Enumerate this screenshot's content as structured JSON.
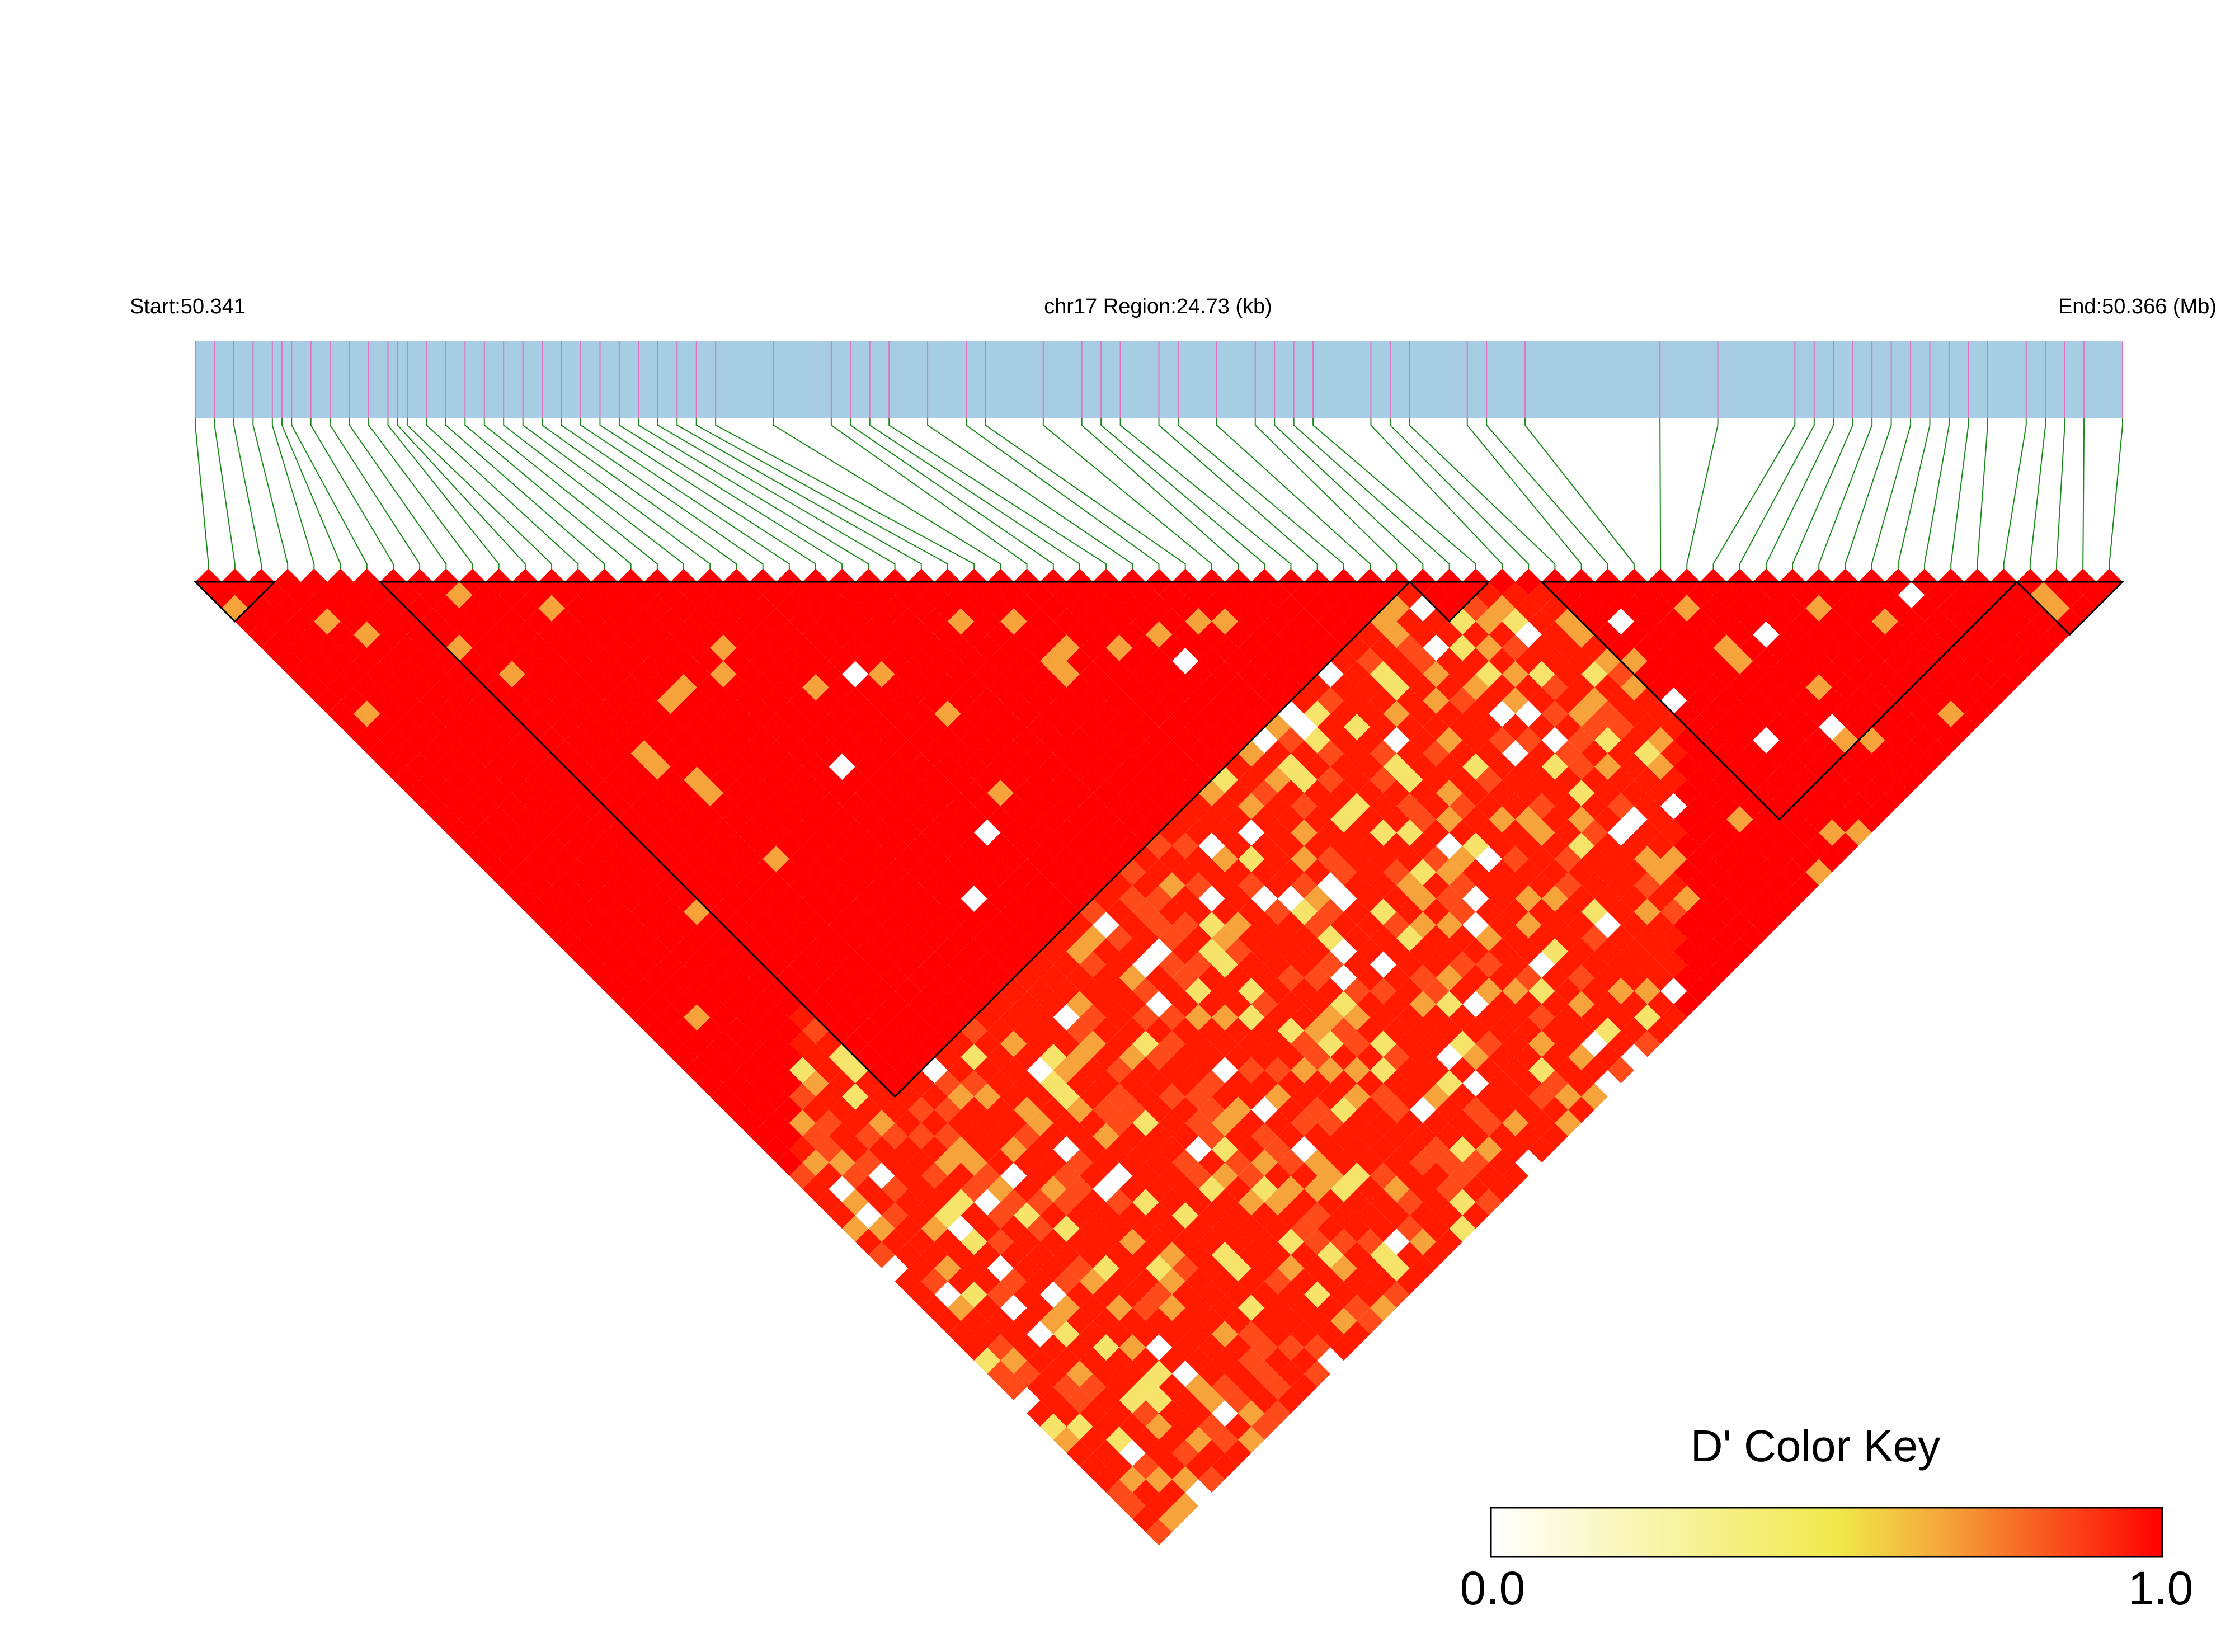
{
  "chart_data": {
    "type": "heatmap",
    "subtype": "linkage-disequilibrium-triangle",
    "region": {
      "start_label": "Start:50.341",
      "center_label": "chr17 Region:24.73 (kb)",
      "end_label": "End:50.366 (Mb)",
      "chromosome": "chr17",
      "start_mb": 50.341,
      "end_mb": 50.366,
      "length_kb": 24.73
    },
    "snp_count": 73,
    "snp_positions_fraction": [
      0.0,
      0.01,
      0.02,
      0.03,
      0.04,
      0.045,
      0.05,
      0.06,
      0.07,
      0.08,
      0.09,
      0.1,
      0.105,
      0.11,
      0.12,
      0.13,
      0.14,
      0.15,
      0.16,
      0.17,
      0.18,
      0.19,
      0.2,
      0.21,
      0.22,
      0.23,
      0.24,
      0.25,
      0.26,
      0.27,
      0.3,
      0.33,
      0.34,
      0.35,
      0.36,
      0.38,
      0.4,
      0.41,
      0.44,
      0.46,
      0.47,
      0.48,
      0.5,
      0.51,
      0.53,
      0.55,
      0.56,
      0.57,
      0.58,
      0.61,
      0.62,
      0.63,
      0.66,
      0.67,
      0.69,
      0.76,
      0.79,
      0.83,
      0.84,
      0.85,
      0.86,
      0.87,
      0.88,
      0.89,
      0.9,
      0.91,
      0.92,
      0.93,
      0.95,
      0.96,
      0.97,
      0.98,
      1.0
    ],
    "blocks": [
      {
        "first": 0,
        "last": 2
      },
      {
        "first": 7,
        "last": 45
      },
      {
        "first": 46,
        "last": 48
      },
      {
        "first": 51,
        "last": 68
      },
      {
        "first": 69,
        "last": 72
      }
    ],
    "d_prime_summary": "Most SNP pairs show D' near 1.0 (red); lower-D' pairs (orange, yellow, white) concentrate in the middle of the matrix between blocks.",
    "color_key": {
      "title": "D' Color Key",
      "min_label": "0.0",
      "max_label": "1.0",
      "min": 0.0,
      "max": 1.0,
      "colors": [
        "#ffffff",
        "#f0e84a",
        "#f5a33a",
        "#ff0000"
      ]
    },
    "colors": {
      "gene_bar": "#a6cde3",
      "snp_tick": "#e073c4",
      "connector": "#1a8a1a",
      "high_ld": "#ff0000",
      "block_outline": "#000000"
    }
  }
}
